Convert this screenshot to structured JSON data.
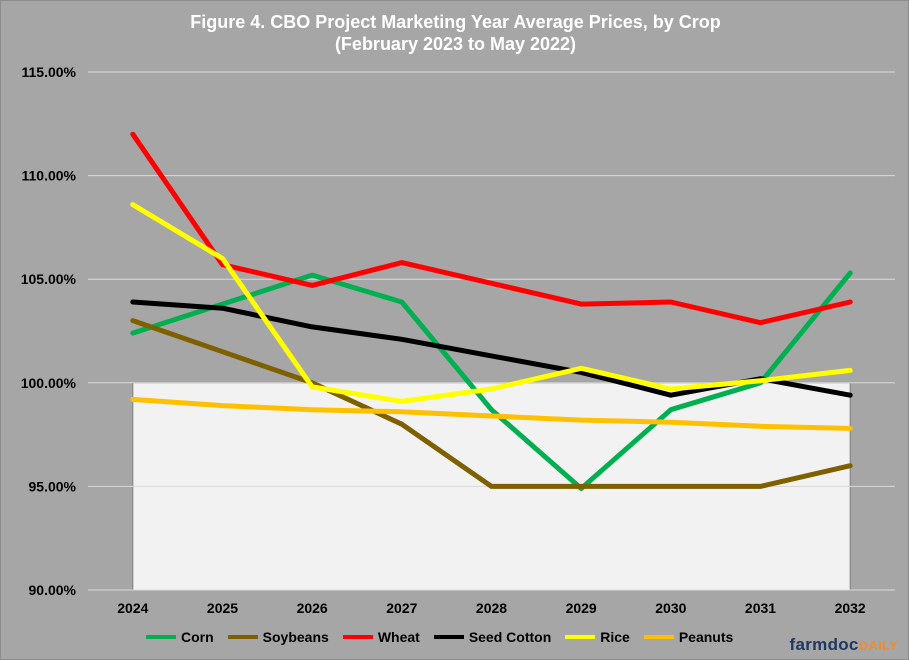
{
  "title_line1": "Figure 4. CBO Project Marketing Year Average Prices, by Crop",
  "title_line2": "(February 2023 to May 2022)",
  "brand": {
    "part1": "farmdoc",
    "part2": "DAILY"
  },
  "chart_data": {
    "type": "line",
    "title": "Figure 4. CBO Project Marketing Year Average Prices, by Crop (February 2023 to May 2022)",
    "xlabel": "",
    "ylabel": "",
    "categories": [
      "2024",
      "2025",
      "2026",
      "2027",
      "2028",
      "2029",
      "2030",
      "2031",
      "2032"
    ],
    "ylim": [
      90,
      115
    ],
    "yticks": [
      90,
      95,
      100,
      105,
      110,
      115
    ],
    "ytick_labels": [
      "90.00%",
      "95.00%",
      "100.00%",
      "105.00%",
      "110.00%",
      "115.00%"
    ],
    "grid": "horizontal",
    "legend_position": "bottom",
    "reference_band": {
      "from": 90,
      "to": 100,
      "color": "#f2f2f2"
    },
    "series": [
      {
        "name": "Corn",
        "color": "#00b050",
        "values": [
          102.4,
          103.8,
          105.2,
          103.9,
          98.7,
          94.9,
          98.7,
          100.0,
          105.3
        ]
      },
      {
        "name": "Soybeans",
        "color": "#7f6000",
        "values": [
          103.0,
          101.5,
          100.0,
          98.0,
          95.0,
          95.0,
          95.0,
          95.0,
          96.0
        ]
      },
      {
        "name": "Wheat",
        "color": "#ff0000",
        "values": [
          112.0,
          105.7,
          104.7,
          105.8,
          104.8,
          103.8,
          103.9,
          102.9,
          103.9
        ]
      },
      {
        "name": "Seed Cotton",
        "color": "#000000",
        "values": [
          103.9,
          103.6,
          102.7,
          102.1,
          101.3,
          100.5,
          99.4,
          100.2,
          99.4
        ]
      },
      {
        "name": "Rice",
        "color": "#ffff00",
        "values": [
          108.6,
          106.0,
          99.8,
          99.1,
          99.7,
          100.7,
          99.7,
          100.1,
          100.6
        ]
      },
      {
        "name": "Peanuts",
        "color": "#ffc000",
        "values": [
          99.2,
          98.9,
          98.7,
          98.6,
          98.4,
          98.2,
          98.1,
          97.9,
          97.8
        ]
      }
    ]
  }
}
